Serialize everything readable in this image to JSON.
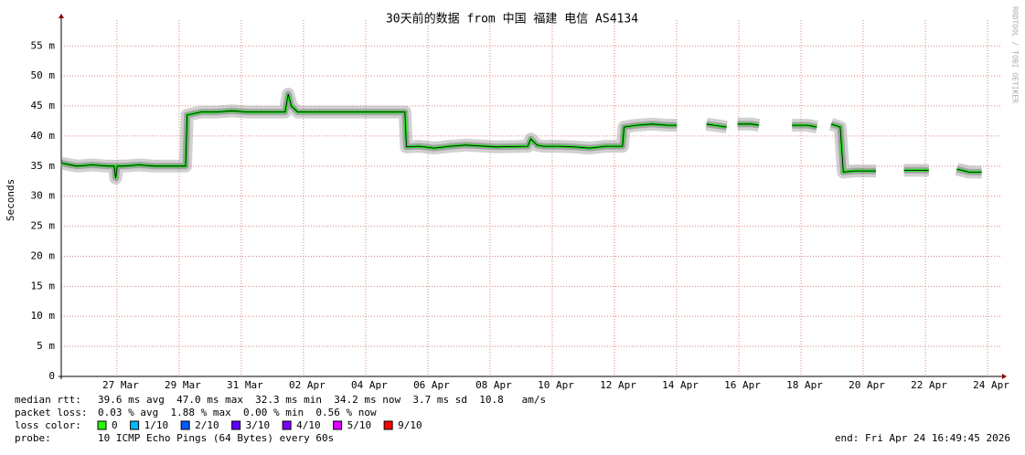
{
  "chart_data": {
    "type": "line",
    "title": "30天前的数据 from 中国 福建 电信 AS4134",
    "y_label": "Seconds",
    "side_note": "RRDTOOL / TOBI OETIKER",
    "xlim": [
      0,
      30.2
    ],
    "xticks": [
      {
        "value": 1.79,
        "label": "27 Mar"
      },
      {
        "value": 3.79,
        "label": "29 Mar"
      },
      {
        "value": 5.79,
        "label": "31 Mar"
      },
      {
        "value": 7.79,
        "label": "02 Apr"
      },
      {
        "value": 9.79,
        "label": "04 Apr"
      },
      {
        "value": 11.79,
        "label": "06 Apr"
      },
      {
        "value": 13.79,
        "label": "08 Apr"
      },
      {
        "value": 15.79,
        "label": "10 Apr"
      },
      {
        "value": 17.79,
        "label": "12 Apr"
      },
      {
        "value": 19.79,
        "label": "14 Apr"
      },
      {
        "value": 21.79,
        "label": "16 Apr"
      },
      {
        "value": 23.79,
        "label": "18 Apr"
      },
      {
        "value": 25.79,
        "label": "20 Apr"
      },
      {
        "value": 27.79,
        "label": "22 Apr"
      },
      {
        "value": 29.79,
        "label": "24 Apr"
      }
    ],
    "ylim": [
      0,
      59.3
    ],
    "yticks": [
      0,
      {
        "value": 5,
        "label": "5 m"
      },
      {
        "value": 10,
        "label": "10 m"
      },
      {
        "value": 15,
        "label": "15 m"
      },
      {
        "value": 20,
        "label": "20 m"
      },
      {
        "value": 25,
        "label": "25 m"
      },
      {
        "value": 30,
        "label": "30 m"
      },
      {
        "value": 35,
        "label": "35 m"
      },
      {
        "value": 40,
        "label": "40 m"
      },
      {
        "value": 45,
        "label": "45 m"
      },
      {
        "value": 50,
        "label": "50 m"
      },
      {
        "value": 55,
        "label": "55 m"
      }
    ],
    "grid": true,
    "series": [
      {
        "name": "median rtt",
        "color": "#22dd22",
        "x": [
          0,
          0.5,
          1,
          1.5,
          1.7,
          1.75,
          1.8,
          2,
          2.5,
          3,
          3.5,
          4.0,
          4.05,
          4.5,
          5,
          5.5,
          6,
          6.5,
          7.2,
          7.3,
          7.4,
          7.6,
          8,
          8.5,
          9,
          9.5,
          10,
          10.5,
          11.05,
          11.1,
          11.5,
          12,
          12.5,
          13,
          14,
          15,
          15.1,
          15.3,
          15.5,
          16,
          16.5,
          17,
          17.5,
          18.05,
          18.1,
          18.5,
          19,
          19.5,
          19.8,
          20.2,
          20.75,
          21,
          21.4,
          21.6,
          21.75,
          22,
          22.2,
          22.44,
          23,
          23.5,
          24,
          24.3,
          24.5,
          24.76,
          25.05,
          25.15,
          25.5,
          26.2,
          26.6,
          27.1,
          27.5,
          27.9,
          28.3,
          28.8,
          29.2,
          29.6
        ],
        "values": [
          35.5,
          35,
          35.2,
          35,
          35,
          33,
          35,
          35,
          35.2,
          35,
          35,
          35,
          43.5,
          44,
          44,
          44.2,
          44,
          44,
          44,
          47,
          45,
          44,
          44,
          44,
          44,
          44,
          44,
          44,
          44,
          38.2,
          38.3,
          38,
          38.3,
          38.5,
          38.2,
          38.3,
          39.5,
          38.5,
          38.3,
          38.3,
          38.2,
          38,
          38.3,
          38.3,
          41.5,
          41.8,
          42,
          41.8,
          41.8,
          null,
          42,
          41.8,
          41.5,
          null,
          42,
          42,
          42,
          41.8,
          null,
          41.8,
          41.8,
          41.5,
          null,
          42,
          41.5,
          34,
          34.2,
          34.2,
          null,
          34.3,
          34.3,
          34.3,
          null,
          34.5,
          34,
          34
        ]
      }
    ],
    "stats": [
      [
        "median rtt:",
        "39.6 ms avg  47.0 ms max  32.3 ms min  34.2 ms now  3.7 ms sd  10.8   am/s"
      ],
      [
        "packet loss:",
        "0.03 % avg  1.88 % max  0.00 % min  0.56 % now"
      ]
    ],
    "loss_label": "loss color:",
    "loss_colors": [
      {
        "name": "0",
        "color": "#26ff00"
      },
      {
        "name": "1/10",
        "color": "#00b8ff"
      },
      {
        "name": "2/10",
        "color": "#0059ff"
      },
      {
        "name": "3/10",
        "color": "#5e00ff"
      },
      {
        "name": "4/10",
        "color": "#7e00ff"
      },
      {
        "name": "5/10",
        "color": "#dd00ff"
      },
      {
        "name": "9/10",
        "color": "#ff0000"
      }
    ],
    "probe_label": "probe:",
    "probe": "10 ICMP Echo Pings (64 Bytes) every 60s",
    "end": "end: Fri Apr 24 16:49:45 2026"
  }
}
